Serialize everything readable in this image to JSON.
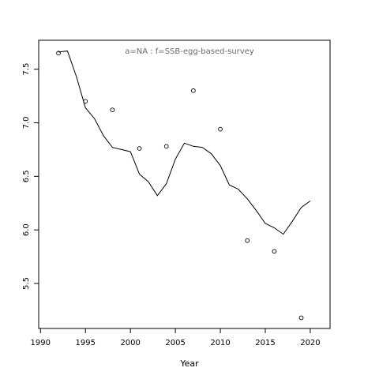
{
  "chart_data": {
    "type": "line",
    "title": "",
    "annotation": "a=NA  :  f=SSB-egg-based-survey",
    "xlabel": "Year",
    "ylabel": "",
    "xlim": [
      1989.8,
      2022.2
    ],
    "ylim": [
      5.08,
      7.77
    ],
    "xticks": [
      1990,
      1995,
      2000,
      2005,
      2010,
      2015,
      2020
    ],
    "yticks": [
      5.5,
      6.0,
      6.5,
      7.0,
      7.5
    ],
    "xtick_labels": [
      "1990",
      "1995",
      "2000",
      "2005",
      "2010",
      "2015",
      "2020"
    ],
    "ytick_labels": [
      "5.5",
      "6.0",
      "6.5",
      "7.0",
      "7.5"
    ],
    "grid": false,
    "series": [
      {
        "kind": "line",
        "x": [
          1992,
          1993,
          1994,
          1995,
          1996,
          1997,
          1998,
          1999,
          2000,
          2001,
          2002,
          2003,
          2004,
          2005,
          2006,
          2007,
          2008,
          2009,
          2010,
          2011,
          2012,
          2013,
          2014,
          2015,
          2016,
          2017,
          2018,
          2019,
          2020
        ],
        "y": [
          7.66,
          7.67,
          7.43,
          7.14,
          7.04,
          6.88,
          6.77,
          6.75,
          6.73,
          6.52,
          6.45,
          6.32,
          6.43,
          6.66,
          6.81,
          6.78,
          6.77,
          6.71,
          6.6,
          6.42,
          6.38,
          6.29,
          6.18,
          6.06,
          6.02,
          5.96,
          6.08,
          6.21,
          6.27
        ]
      },
      {
        "kind": "points",
        "x": [
          1992,
          1995,
          1998,
          2001,
          2004,
          2007,
          2010,
          2013,
          2016,
          2019
        ],
        "y": [
          7.65,
          7.2,
          7.12,
          6.76,
          6.78,
          7.3,
          6.94,
          5.9,
          5.8,
          5.18
        ]
      }
    ]
  }
}
